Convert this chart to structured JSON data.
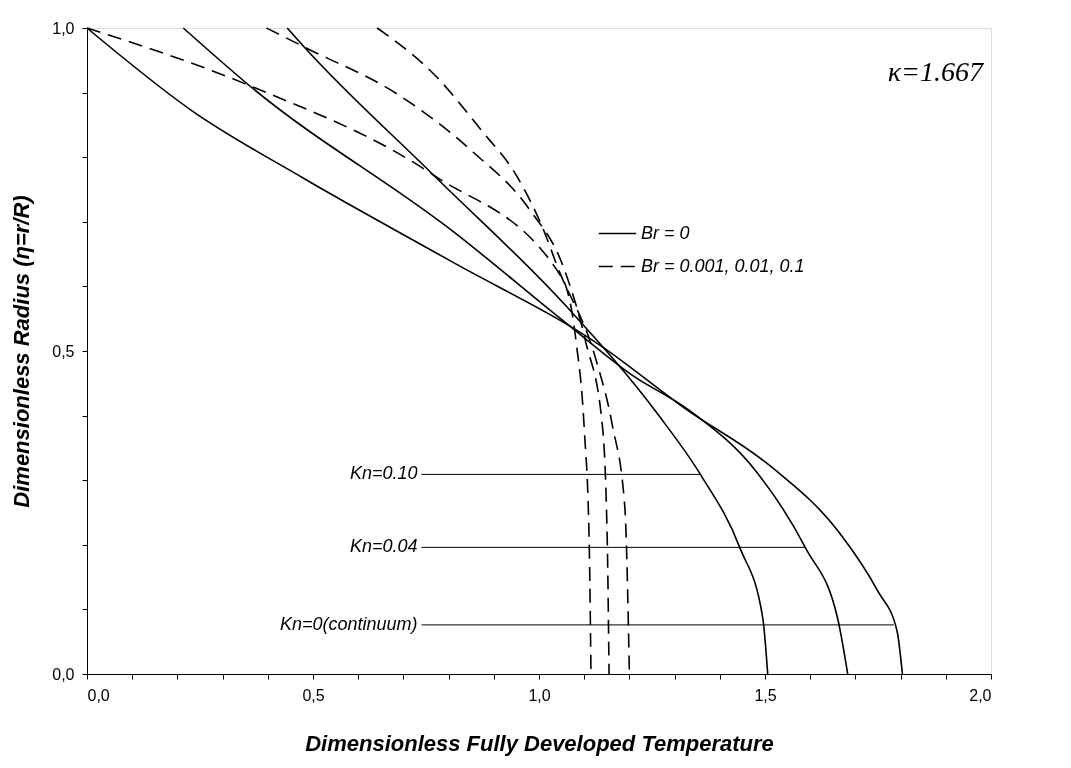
{
  "chart_data": {
    "type": "line",
    "xlabel": "Dimensionless Fully Developed Temperature",
    "ylabel": "Dimensionless Radius (η=r/R)",
    "xlim": [
      0,
      2
    ],
    "ylim": [
      0,
      1
    ],
    "xticks": [
      {
        "value": 0,
        "label": "0,0"
      },
      {
        "value": 0.1,
        "label": null
      },
      {
        "value": 0.2,
        "label": null
      },
      {
        "value": 0.3,
        "label": null
      },
      {
        "value": 0.4,
        "label": null
      },
      {
        "value": 0.5,
        "label": "0,5"
      },
      {
        "value": 0.6,
        "label": null
      },
      {
        "value": 0.7,
        "label": null
      },
      {
        "value": 0.8,
        "label": null
      },
      {
        "value": 0.9,
        "label": null
      },
      {
        "value": 1.0,
        "label": "1,0"
      },
      {
        "value": 1.1,
        "label": null
      },
      {
        "value": 1.2,
        "label": null
      },
      {
        "value": 1.3,
        "label": null
      },
      {
        "value": 1.4,
        "label": null
      },
      {
        "value": 1.5,
        "label": "1,5"
      },
      {
        "value": 1.6,
        "label": null
      },
      {
        "value": 1.7,
        "label": null
      },
      {
        "value": 1.8,
        "label": null
      },
      {
        "value": 1.9,
        "label": null
      },
      {
        "value": 2.0,
        "label": "2,0"
      }
    ],
    "yticks": [
      {
        "value": 0,
        "label": "0,0"
      },
      {
        "value": 0.1,
        "label": null
      },
      {
        "value": 0.2,
        "label": null
      },
      {
        "value": 0.3,
        "label": null
      },
      {
        "value": 0.4,
        "label": null
      },
      {
        "value": 0.5,
        "label": "0,5"
      },
      {
        "value": 0.6,
        "label": null
      },
      {
        "value": 0.7,
        "label": null
      },
      {
        "value": 0.8,
        "label": null
      },
      {
        "value": 0.9,
        "label": null
      },
      {
        "value": 1.0,
        "label": "1,0"
      }
    ],
    "grid": false,
    "legend": "top right",
    "marker": "none",
    "series": [
      {
        "name": "Br = 0",
        "color": "#000000",
        "line_style": "solid",
        "x": [
          0,
          0.23,
          0.48,
          0.8,
          1.141,
          1.321,
          1.517,
          1.662,
          1.749,
          1.792,
          1.804
        ],
        "values": [
          1,
          0.873,
          0.767,
          0.641,
          0.506,
          0.412,
          0.319,
          0.221,
          0.129,
          0.067,
          0
        ]
      },
      {
        "color": "#000000",
        "line_style": "solid",
        "x": [
          0.213,
          0.359,
          0.812,
          1.062,
          1.205,
          1.335,
          1.48,
          1.589,
          1.662,
          1.683
        ],
        "values": [
          1,
          0.911,
          0.684,
          0.542,
          0.463,
          0.407,
          0.314,
          0.196,
          0.082,
          0
        ]
      },
      {
        "color": "#000000",
        "line_style": "solid",
        "x": [
          0.443,
          0.48,
          0.767,
          1.062,
          1.263,
          1.357,
          1.444,
          1.495,
          1.506
        ],
        "values": [
          1,
          0.971,
          0.772,
          0.568,
          0.402,
          0.309,
          0.196,
          0.087,
          0
        ]
      },
      {
        "name": "Br = 0.001, 0.01, 0.1",
        "color": "#000000",
        "line_style": "dashed",
        "x": [
          0,
          0.359,
          0.767,
          1.052,
          1.082,
          1.1,
          1.111,
          1.115
        ],
        "values": [
          1,
          0.911,
          0.772,
          0.612,
          0.515,
          0.381,
          0.206,
          0
        ]
      },
      {
        "color": "#000000",
        "line_style": "dashed",
        "x": [
          0.397,
          0.488,
          0.688,
          0.854,
          0.979,
          1.054,
          1.103,
          1.14,
          1.151,
          1.155
        ],
        "values": [
          1,
          0.968,
          0.897,
          0.808,
          0.719,
          0.63,
          0.515,
          0.386,
          0.206,
          0
        ]
      },
      {
        "color": "#000000",
        "line_style": "dashed",
        "x": [
          0.642,
          0.771,
          0.871,
          0.954,
          1.012,
          1.041,
          1.125,
          1.162,
          1.19,
          1.2
        ],
        "values": [
          1,
          0.926,
          0.843,
          0.767,
          0.684,
          0.63,
          0.489,
          0.386,
          0.257,
          0
        ]
      }
    ],
    "annotations": [
      "κ=1.667",
      {
        "text": "Kn=0.10",
        "x": 1.357,
        "y": 0.309
      },
      {
        "text": "Kn=0.04",
        "x": 1.589,
        "y": 0.196
      },
      {
        "text": "Kn=0(continuum)",
        "x": 1.785,
        "y": 0.076
      }
    ]
  }
}
